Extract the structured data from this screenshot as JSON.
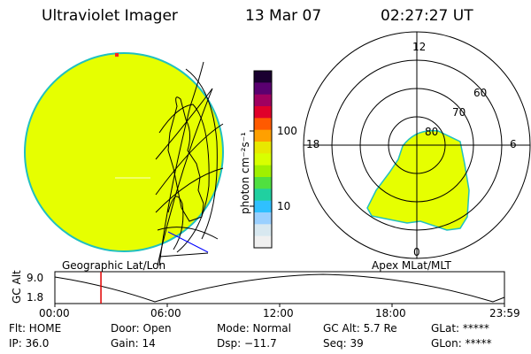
{
  "header": {
    "title": "Ultraviolet Imager",
    "date": "13 Mar 07",
    "time": "02:27:27 UT"
  },
  "colorbar": {
    "unit_label": "photon cm⁻²s⁻¹",
    "ticks": [
      "100",
      "10"
    ],
    "scale": "log",
    "colors": [
      "#1a0030",
      "#5a0070",
      "#a00060",
      "#e0002a",
      "#ff5a00",
      "#ffa000",
      "#e8e800",
      "#d8ff00",
      "#a0f000",
      "#50e040",
      "#20d0a0",
      "#30c0ff",
      "#9ad0ff",
      "#d8e8f0",
      "#f0f0f0"
    ]
  },
  "left_panel": {
    "label": "Geographic Lat/Lon",
    "disk_color": "#e6ff00",
    "limb_color": "#20c0c0"
  },
  "right_panel": {
    "label": "Apex MLat/MLT",
    "mlt_labels": {
      "top": "12",
      "left": "18",
      "right": "6",
      "bottom": "0"
    },
    "lat_labels": [
      "60",
      "70",
      "80"
    ],
    "oval_color": "#e6ff00"
  },
  "altitude_plot": {
    "ylabel": "GC Alt",
    "ytick_top": "9.0",
    "ytick_bottom": "1.8",
    "xticks": [
      "00:00",
      "06:00",
      "12:00",
      "18:00",
      "23:59"
    ],
    "marker_color": "#e00000",
    "marker_time_hours": 2.46
  },
  "info": {
    "flt": "Flt: HOME",
    "ip": "IP: 36.0",
    "door": "Door: Open",
    "gain": "Gain: 14",
    "mode": "Mode: Normal",
    "dsp": "Dsp:  −11.7",
    "gcalt": "GC Alt: 5.7 Re",
    "seq": "Seq: 39",
    "glat": "GLat: *****",
    "glon": "GLon: *****"
  }
}
